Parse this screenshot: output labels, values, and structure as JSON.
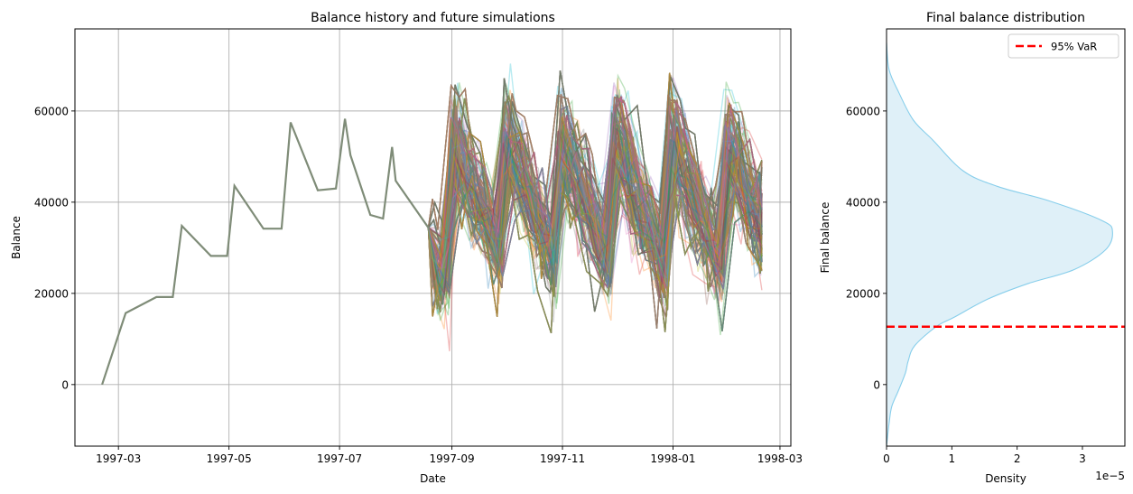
{
  "chart_data": [
    {
      "type": "line",
      "title": "Balance history and future simulations",
      "xlabel": "Date",
      "ylabel": "Balance",
      "grid": true,
      "xlim": [
        "1997-02-05",
        "1998-03-07"
      ],
      "ylim": [
        -13500,
        78000
      ],
      "x_ticks": [
        "1997-03",
        "1997-05",
        "1997-07",
        "1997-09",
        "1997-11",
        "1998-01",
        "1998-03"
      ],
      "y_ticks": [
        0,
        20000,
        40000,
        60000
      ],
      "history": {
        "name": "Historical balance",
        "color": "#7f8c78",
        "x": [
          "1997-02-20",
          "1997-03-05",
          "1997-03-22",
          "1997-03-31",
          "1997-04-05",
          "1997-04-21",
          "1997-04-30",
          "1997-05-04",
          "1997-05-20",
          "1997-05-30",
          "1997-06-04",
          "1997-06-19",
          "1997-06-29",
          "1997-07-04",
          "1997-07-07",
          "1997-07-18",
          "1997-07-25",
          "1997-07-30",
          "1997-08-01",
          "1997-08-19"
        ],
        "y": [
          0,
          15700,
          19200,
          19200,
          34800,
          28200,
          28200,
          43600,
          34200,
          34200,
          57500,
          42600,
          43000,
          58300,
          50300,
          37200,
          36400,
          52100,
          44700,
          34400
        ]
      },
      "simulations": {
        "count": 500,
        "start_date": "1997-08-19",
        "end_date": "1998-02-19",
        "start_value": 34400,
        "alpha": 0.3,
        "cycle_peaks": [
          "1997-09-03",
          "1997-10-02",
          "1997-11-01",
          "1997-12-01",
          "1998-01-01",
          "1998-02-01"
        ],
        "typical_peak": 52000,
        "typical_trough": 25000,
        "observed_max": 74000,
        "observed_min": -9500,
        "palette": [
          "#1f77b4",
          "#ff7f0e",
          "#2ca02c",
          "#d62728",
          "#9467bd",
          "#8c564b",
          "#e377c2",
          "#7f7f7f",
          "#bcbd22",
          "#17becf"
        ]
      }
    },
    {
      "type": "area",
      "title": "Final balance distribution",
      "xlabel": "Density",
      "ylabel": "Final balance",
      "x_scale_label": "1e−5",
      "x_ticks": [
        0,
        1,
        2,
        3
      ],
      "xlim": [
        0,
        3.65
      ],
      "ylim": [
        -13500,
        78000
      ],
      "y_ticks": [
        0,
        20000,
        40000,
        60000
      ],
      "kde": {
        "color": "#87ceeb",
        "fill": "#dff0f8",
        "balance": [
          75000,
          69000,
          64000,
          58000,
          53600,
          46800,
          43400,
          40200,
          35900,
          33500,
          29500,
          25200,
          22200,
          18800,
          14800,
          12700,
          8500,
          5100,
          2600,
          -1400,
          -4800,
          -8400,
          -13500
        ],
        "density": [
          0.0,
          0.04,
          0.19,
          0.41,
          0.71,
          1.18,
          1.71,
          2.51,
          3.31,
          3.46,
          3.35,
          2.87,
          2.18,
          1.56,
          1.04,
          0.76,
          0.43,
          0.33,
          0.29,
          0.18,
          0.08,
          0.04,
          0.0
        ]
      },
      "var_line": {
        "label": "95% VaR",
        "value": 12700,
        "color": "#ff0000",
        "style": "dashed"
      },
      "legend": {
        "position": "upper right",
        "entries": [
          "95% VaR"
        ]
      }
    }
  ],
  "left_panel": {
    "title": "Balance history and future simulations",
    "xlabel": "Date",
    "ylabel": "Balance",
    "x_tick_labels": [
      "1997-03",
      "1997-05",
      "1997-07",
      "1997-09",
      "1997-11",
      "1998-01",
      "1998-03"
    ],
    "y_tick_labels": [
      "0",
      "20000",
      "40000",
      "60000"
    ]
  },
  "right_panel": {
    "title": "Final balance distribution",
    "xlabel": "Density",
    "ylabel": "Final balance",
    "offset_label": "1e−5",
    "x_tick_labels": [
      "0",
      "1",
      "2",
      "3"
    ],
    "y_tick_labels": [
      "0",
      "20000",
      "40000",
      "60000"
    ],
    "legend_label": "95% VaR"
  }
}
